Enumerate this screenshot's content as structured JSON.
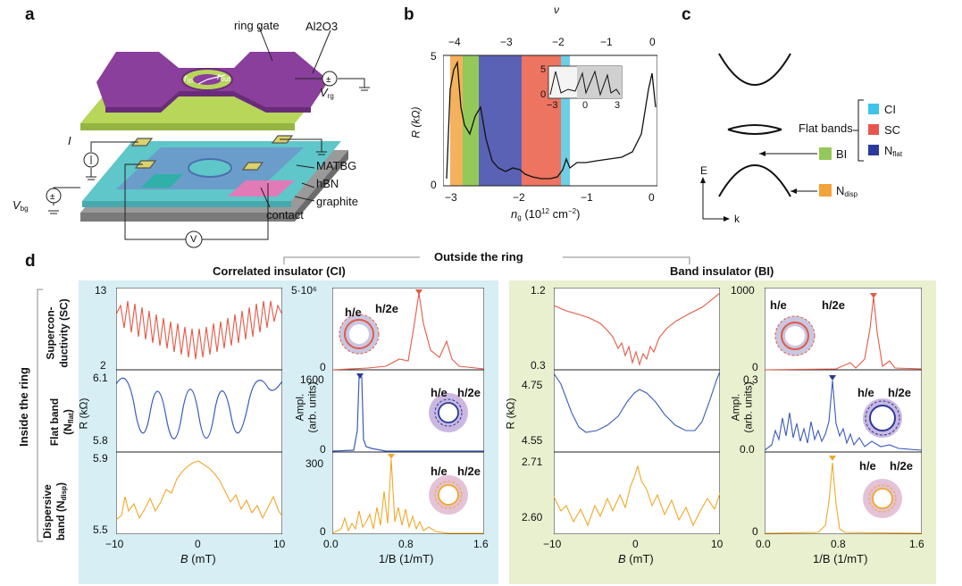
{
  "panel_labels": {
    "a": "a",
    "b": "b",
    "c": "c",
    "d": "d"
  },
  "panel_a": {
    "ring_gate": "ring gate",
    "al2o3": "Al2O3",
    "r_in": "r",
    "r_in_sub": "in",
    "r_out": "r",
    "r_out_sub": "out",
    "v_rg": "V",
    "v_rg_sub": "rg",
    "current": "I",
    "matbg": "MATBG",
    "hbn": "hBN",
    "graphite": "graphite",
    "contact": "contact",
    "v_bg": "V",
    "v_bg_sub": "bg",
    "voltmeter": "V",
    "colors": {
      "gate": "#8a3f9c",
      "al2o3": "#b7d65a",
      "hbn": "#64c8c8",
      "graphite": "#9a9a9a",
      "contact": "#e27ab8"
    }
  },
  "panel_b": {
    "top_axis_label": "ν",
    "top_ticks": [
      "−4",
      "−3",
      "−2",
      "−1",
      "0"
    ],
    "ylabel": "R (kΩ)",
    "xlabel": "n",
    "xlabel_sub": "g",
    "xlabel_units": "(10",
    "xlabel_exp": "12",
    "xlabel_tail": "cm",
    "xlabel_tail_exp": "−2",
    "xlabel_close": ")",
    "x_ticks": [
      "−3",
      "−2",
      "−1",
      "0"
    ],
    "y_ticks": [
      "0",
      "5"
    ],
    "inset_y_ticks": [
      "5",
      "0"
    ],
    "inset_x_ticks": [
      "−3",
      "0",
      "3"
    ],
    "region_colors": {
      "N_disp": "#f4b25c",
      "BI": "#94c95a",
      "N_flat": "#5a62b5",
      "SC": "#ec7460",
      "CI": "#6ccfe6"
    }
  },
  "panel_c": {
    "flat_bands": "Flat bands",
    "legend": [
      {
        "label": "CI",
        "color": "#3fc3e8"
      },
      {
        "label": "SC",
        "color": "#e7574d"
      },
      {
        "label": "N",
        "sub": "flat",
        "color": "#2a3a9a"
      }
    ],
    "bi": "BI",
    "bi_color": "#94c95a",
    "ndisp": "N",
    "ndisp_sub": "disp",
    "ndisp_color": "#f4a338",
    "e_axis": "E",
    "k_axis": "k"
  },
  "panel_d": {
    "outside_ring": "Outside the ring",
    "ci_title": "Correlated insulator (CI)",
    "bi_title": "Band insulator (BI)",
    "inside_ring": "Inside the ring",
    "row_sc": "Supercon-ductivity (SC)",
    "row_sc_a": "Supercon-",
    "row_sc_b": "ductivity (SC)",
    "row_flat_a": "Flat band",
    "row_flat_b": "(N",
    "row_flat_sub": "flat",
    "row_flat_c": ")",
    "row_disp_a": "Dispersive",
    "row_disp_b": "band (N",
    "row_disp_sub": "disp",
    "row_disp_c": ")",
    "r_label": "R (kΩ)",
    "ampl_label_a": "Ampl.",
    "ampl_label_b": "(arb. units)",
    "b_label": "B",
    "b_units": "(mT)",
    "invb_label": "1/B (1/mT)",
    "invb_label_b": "B",
    "ci_r_ticks": {
      "sc": [
        "13",
        "2"
      ],
      "flat": [
        "6.1",
        "5.8"
      ],
      "disp": [
        "5.9",
        "5.5"
      ]
    },
    "ci_a_ticks": {
      "sc": [
        "5·10⁶",
        "0"
      ],
      "flat": [
        "1600",
        "0"
      ],
      "disp": [
        "300",
        "0"
      ]
    },
    "bi_r_ticks": {
      "sc": [
        "1.2",
        "0.3"
      ],
      "flat": [
        "4.75",
        "4.55"
      ],
      "disp": [
        "2.71",
        "2.60"
      ]
    },
    "bi_a_ticks": {
      "sc": [
        "1000",
        "0"
      ],
      "flat": [
        "0.3",
        "0.0"
      ],
      "disp": [
        "0"
      ]
    },
    "b_ticks": [
      "−10",
      "0",
      "10"
    ],
    "invb_ticks": [
      "0.0",
      "0.8",
      "1.6"
    ],
    "he": "h/e",
    "h2e": "h/2e",
    "bg_colors": {
      "ci": "#d6eef4",
      "bi": "#e9f0cf"
    },
    "trace_colors": {
      "sc": "#e25a47",
      "flat": "#3a5cb8",
      "disp": "#f0a82a"
    }
  }
}
